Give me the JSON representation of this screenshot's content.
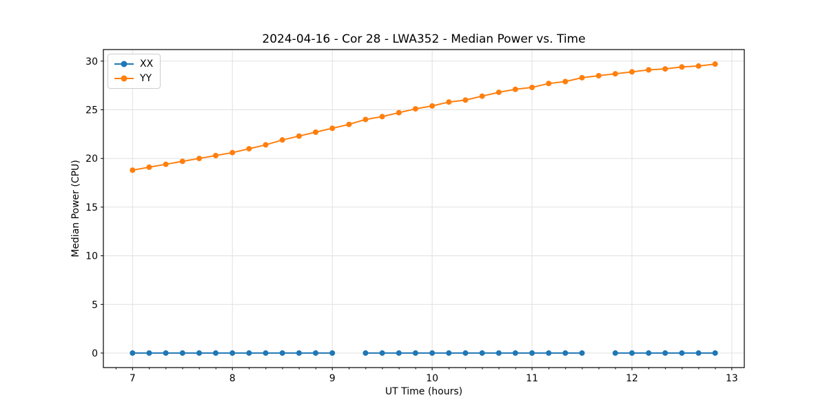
{
  "chart_data": {
    "type": "line",
    "title": "2024-04-16 - Cor 28 - LWA352 - Median Power vs. Time",
    "xlabel": "UT Time (hours)",
    "ylabel": "Median Power (CPU)",
    "xlim": [
      6.708,
      13.125
    ],
    "ylim": [
      -1.49,
      31.19
    ],
    "x_major_ticks": [
      7,
      8,
      9,
      10,
      11,
      12,
      13
    ],
    "x_minor_tick_interval": 0.1667,
    "y_major_ticks": [
      0,
      5,
      10,
      15,
      20,
      25,
      30
    ],
    "grid": "on",
    "legend_position": "upper left",
    "colors": {
      "background": "#ffffff",
      "grid": "#e0e0e0",
      "axis": "#000000",
      "text": "#000000"
    },
    "series": [
      {
        "name": "XX",
        "color": "#1f77b4",
        "x": [
          7,
          7.167,
          7.333,
          7.5,
          7.667,
          7.833,
          8,
          8.167,
          8.333,
          8.5,
          8.667,
          8.833,
          9,
          9.333,
          9.5,
          9.667,
          9.833,
          10,
          10.167,
          10.333,
          10.5,
          10.667,
          10.833,
          11,
          11.167,
          11.333,
          11.5,
          11.833,
          12,
          12.167,
          12.333,
          12.5,
          12.667,
          12.833
        ],
        "y": [
          0,
          0,
          0,
          0,
          0,
          0,
          0,
          0,
          0,
          0,
          0,
          0,
          0,
          0,
          0,
          0,
          0,
          0,
          0,
          0,
          0,
          0,
          0,
          0,
          0,
          0,
          0,
          0,
          0,
          0,
          0,
          0,
          0,
          0
        ]
      },
      {
        "name": "YY",
        "color": "#ff7f0e",
        "x": [
          7,
          7.167,
          7.333,
          7.5,
          7.667,
          7.833,
          8,
          8.167,
          8.333,
          8.5,
          8.667,
          8.833,
          9,
          9.167,
          9.333,
          9.5,
          9.667,
          9.833,
          10,
          10.167,
          10.333,
          10.5,
          10.667,
          10.833,
          11,
          11.167,
          11.333,
          11.5,
          11.667,
          11.833,
          12,
          12.167,
          12.333,
          12.5,
          12.667,
          12.833
        ],
        "y": [
          18.8,
          19.1,
          19.4,
          19.7,
          20.0,
          20.3,
          20.6,
          21.0,
          21.4,
          21.9,
          22.3,
          22.7,
          23.1,
          23.5,
          24.0,
          24.3,
          24.7,
          25.1,
          25.4,
          25.8,
          26.0,
          26.4,
          26.8,
          27.1,
          27.3,
          27.7,
          27.9,
          28.3,
          28.5,
          28.7,
          28.9,
          29.1,
          29.2,
          29.4,
          29.5,
          29.7
        ]
      }
    ]
  }
}
